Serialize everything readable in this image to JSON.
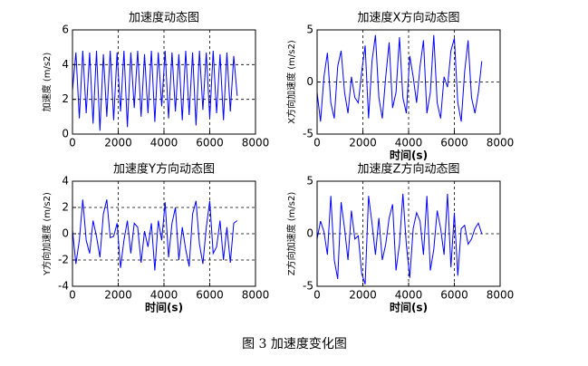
{
  "chart_data": [
    {
      "type": "line",
      "title": "加速度动态图",
      "ylabel": "加速度 (m/s2)",
      "xlim": [
        0,
        8000
      ],
      "xticks": [
        0,
        2000,
        4000,
        6000,
        8000
      ],
      "ylim": [
        0,
        6
      ],
      "yticks": [
        0,
        2,
        4,
        6
      ],
      "grid": true,
      "series": [
        {
          "color": "#0000ff",
          "x": [
            0,
            150,
            300,
            450,
            600,
            750,
            900,
            1050,
            1200,
            1350,
            1500,
            1650,
            1800,
            1950,
            2100,
            2250,
            2400,
            2550,
            2700,
            2850,
            3000,
            3150,
            3300,
            3450,
            3600,
            3750,
            3900,
            4050,
            4200,
            4350,
            4500,
            4650,
            4800,
            4950,
            5100,
            5250,
            5400,
            5550,
            5700,
            5850,
            6000,
            6150,
            6300,
            6450,
            6600,
            6750,
            6900,
            7050,
            7200
          ],
          "values": [
            2.5,
            4.7,
            0.9,
            4.8,
            1.2,
            4.7,
            0.6,
            4.8,
            0.2,
            4.6,
            1.0,
            4.8,
            0.8,
            4.7,
            1.3,
            4.8,
            0.4,
            4.7,
            1.5,
            4.8,
            1.0,
            4.6,
            1.2,
            4.8,
            0.7,
            4.7,
            1.6,
            4.8,
            0.9,
            4.7,
            1.3,
            4.6,
            0.8,
            4.8,
            1.1,
            4.7,
            0.5,
            4.8,
            1.4,
            4.7,
            0.9,
            4.8,
            1.2,
            4.6,
            0.8,
            4.7,
            1.3,
            4.5,
            2.2
          ]
        }
      ]
    },
    {
      "type": "line",
      "title": "加速度X方向动态图",
      "xlabel": "时间(s)",
      "ylabel": "X方向加速度 (m/s2)",
      "xlim": [
        0,
        8000
      ],
      "xticks": [
        0,
        2000,
        4000,
        6000,
        8000
      ],
      "ylim": [
        -5,
        5
      ],
      "yticks": [
        -5,
        0,
        5
      ],
      "grid": true,
      "series": [
        {
          "color": "#0000ff",
          "x": [
            0,
            150,
            300,
            450,
            600,
            750,
            900,
            1050,
            1200,
            1350,
            1500,
            1650,
            1800,
            1950,
            2100,
            2250,
            2400,
            2550,
            2700,
            2850,
            3000,
            3150,
            3300,
            3450,
            3600,
            3750,
            3900,
            4050,
            4200,
            4350,
            4500,
            4650,
            4800,
            4950,
            5100,
            5250,
            5400,
            5550,
            5700,
            5850,
            6000,
            6150,
            6300,
            6450,
            6600,
            6750,
            6900,
            7050,
            7200
          ],
          "values": [
            -1.0,
            -3.8,
            0.5,
            2.8,
            -2.0,
            -3.5,
            1.5,
            3.0,
            -1.0,
            -3.0,
            0.5,
            -1.5,
            -2.0,
            1.0,
            3.5,
            -3.5,
            2.0,
            4.5,
            -1.5,
            -3.5,
            0.5,
            3.8,
            -2.5,
            -1.0,
            4.3,
            -1.5,
            -3.0,
            2.5,
            0.5,
            -2.0,
            1.5,
            4.0,
            -3.0,
            -1.0,
            4.5,
            -2.0,
            -3.5,
            0.5,
            -0.5,
            3.0,
            4.2,
            -2.0,
            -3.8,
            1.0,
            4.0,
            -1.5,
            -3.0,
            -1.0,
            2.0
          ]
        }
      ]
    },
    {
      "type": "line",
      "title": "加速度Y方向动态图",
      "xlabel": "时间(s)",
      "ylabel": "Y方向加速度 (m/s2)",
      "xlim": [
        0,
        8000
      ],
      "xticks": [
        0,
        2000,
        4000,
        6000,
        8000
      ],
      "ylim": [
        -4,
        4
      ],
      "yticks": [
        -4,
        -2,
        0,
        2,
        4
      ],
      "grid": true,
      "series": [
        {
          "color": "#0000ff",
          "x": [
            0,
            150,
            300,
            450,
            600,
            750,
            900,
            1050,
            1200,
            1350,
            1500,
            1650,
            1800,
            1950,
            2100,
            2250,
            2400,
            2550,
            2700,
            2850,
            3000,
            3150,
            3300,
            3450,
            3600,
            3750,
            3900,
            4050,
            4200,
            4350,
            4500,
            4650,
            4800,
            4950,
            5100,
            5250,
            5400,
            5550,
            5700,
            5850,
            6000,
            6150,
            6300,
            6450,
            6600,
            6750,
            6900,
            7050,
            7200
          ],
          "values": [
            0.3,
            -2.3,
            -0.5,
            2.6,
            -0.5,
            -1.5,
            1.0,
            -0.2,
            -1.8,
            1.5,
            2.6,
            -0.3,
            -0.2,
            0.8,
            -2.6,
            -0.5,
            1.0,
            -1.5,
            0.8,
            0.5,
            -2.2,
            0.2,
            -1.0,
            0.8,
            -2.8,
            1.0,
            -0.5,
            2.4,
            -1.8,
            0.8,
            2.0,
            -2.0,
            0.5,
            -1.2,
            -2.5,
            1.5,
            2.5,
            -0.8,
            -2.3,
            0.5,
            2.5,
            -1.5,
            -1.0,
            1.0,
            -2.0,
            0.5,
            -2.2,
            0.8,
            1.0
          ]
        }
      ]
    },
    {
      "type": "line",
      "title": "加速度Z方向动态图",
      "xlabel": "时间(s)",
      "ylabel": "Z方向加速度 (m/s2)",
      "xlim": [
        0,
        8000
      ],
      "xticks": [
        0,
        2000,
        4000,
        6000,
        8000
      ],
      "ylim": [
        -5,
        5
      ],
      "yticks": [
        -5,
        0,
        5
      ],
      "grid": true,
      "series": [
        {
          "color": "#0000ff",
          "x": [
            0,
            150,
            300,
            450,
            600,
            750,
            900,
            1050,
            1200,
            1350,
            1500,
            1650,
            1800,
            1950,
            2100,
            2250,
            2400,
            2550,
            2700,
            2850,
            3000,
            3150,
            3300,
            3450,
            3600,
            3750,
            3900,
            4050,
            4200,
            4350,
            4500,
            4650,
            4800,
            4950,
            5100,
            5250,
            5400,
            5550,
            5700,
            5850,
            6000,
            6150,
            6300,
            6450,
            6600,
            6750,
            6900,
            7050,
            7200
          ],
          "values": [
            -0.5,
            1.2,
            0.2,
            -2.0,
            3.6,
            -2.5,
            -4.3,
            3.0,
            0.5,
            -2.5,
            2.2,
            -0.5,
            -0.2,
            -3.8,
            -4.8,
            3.6,
            1.0,
            -2.0,
            1.5,
            -2.5,
            -1.0,
            1.5,
            2.8,
            -3.5,
            -1.0,
            3.8,
            -1.0,
            -4.2,
            0.5,
            2.0,
            1.2,
            -2.0,
            3.6,
            -3.5,
            -1.5,
            2.2,
            0.5,
            -2.0,
            3.8,
            -3.2,
            2.0,
            -4.0,
            0.5,
            0.8,
            -1.0,
            -0.5,
            0.5,
            1.0,
            0.0
          ]
        }
      ]
    }
  ],
  "caption": "图 3  加速度变化图"
}
